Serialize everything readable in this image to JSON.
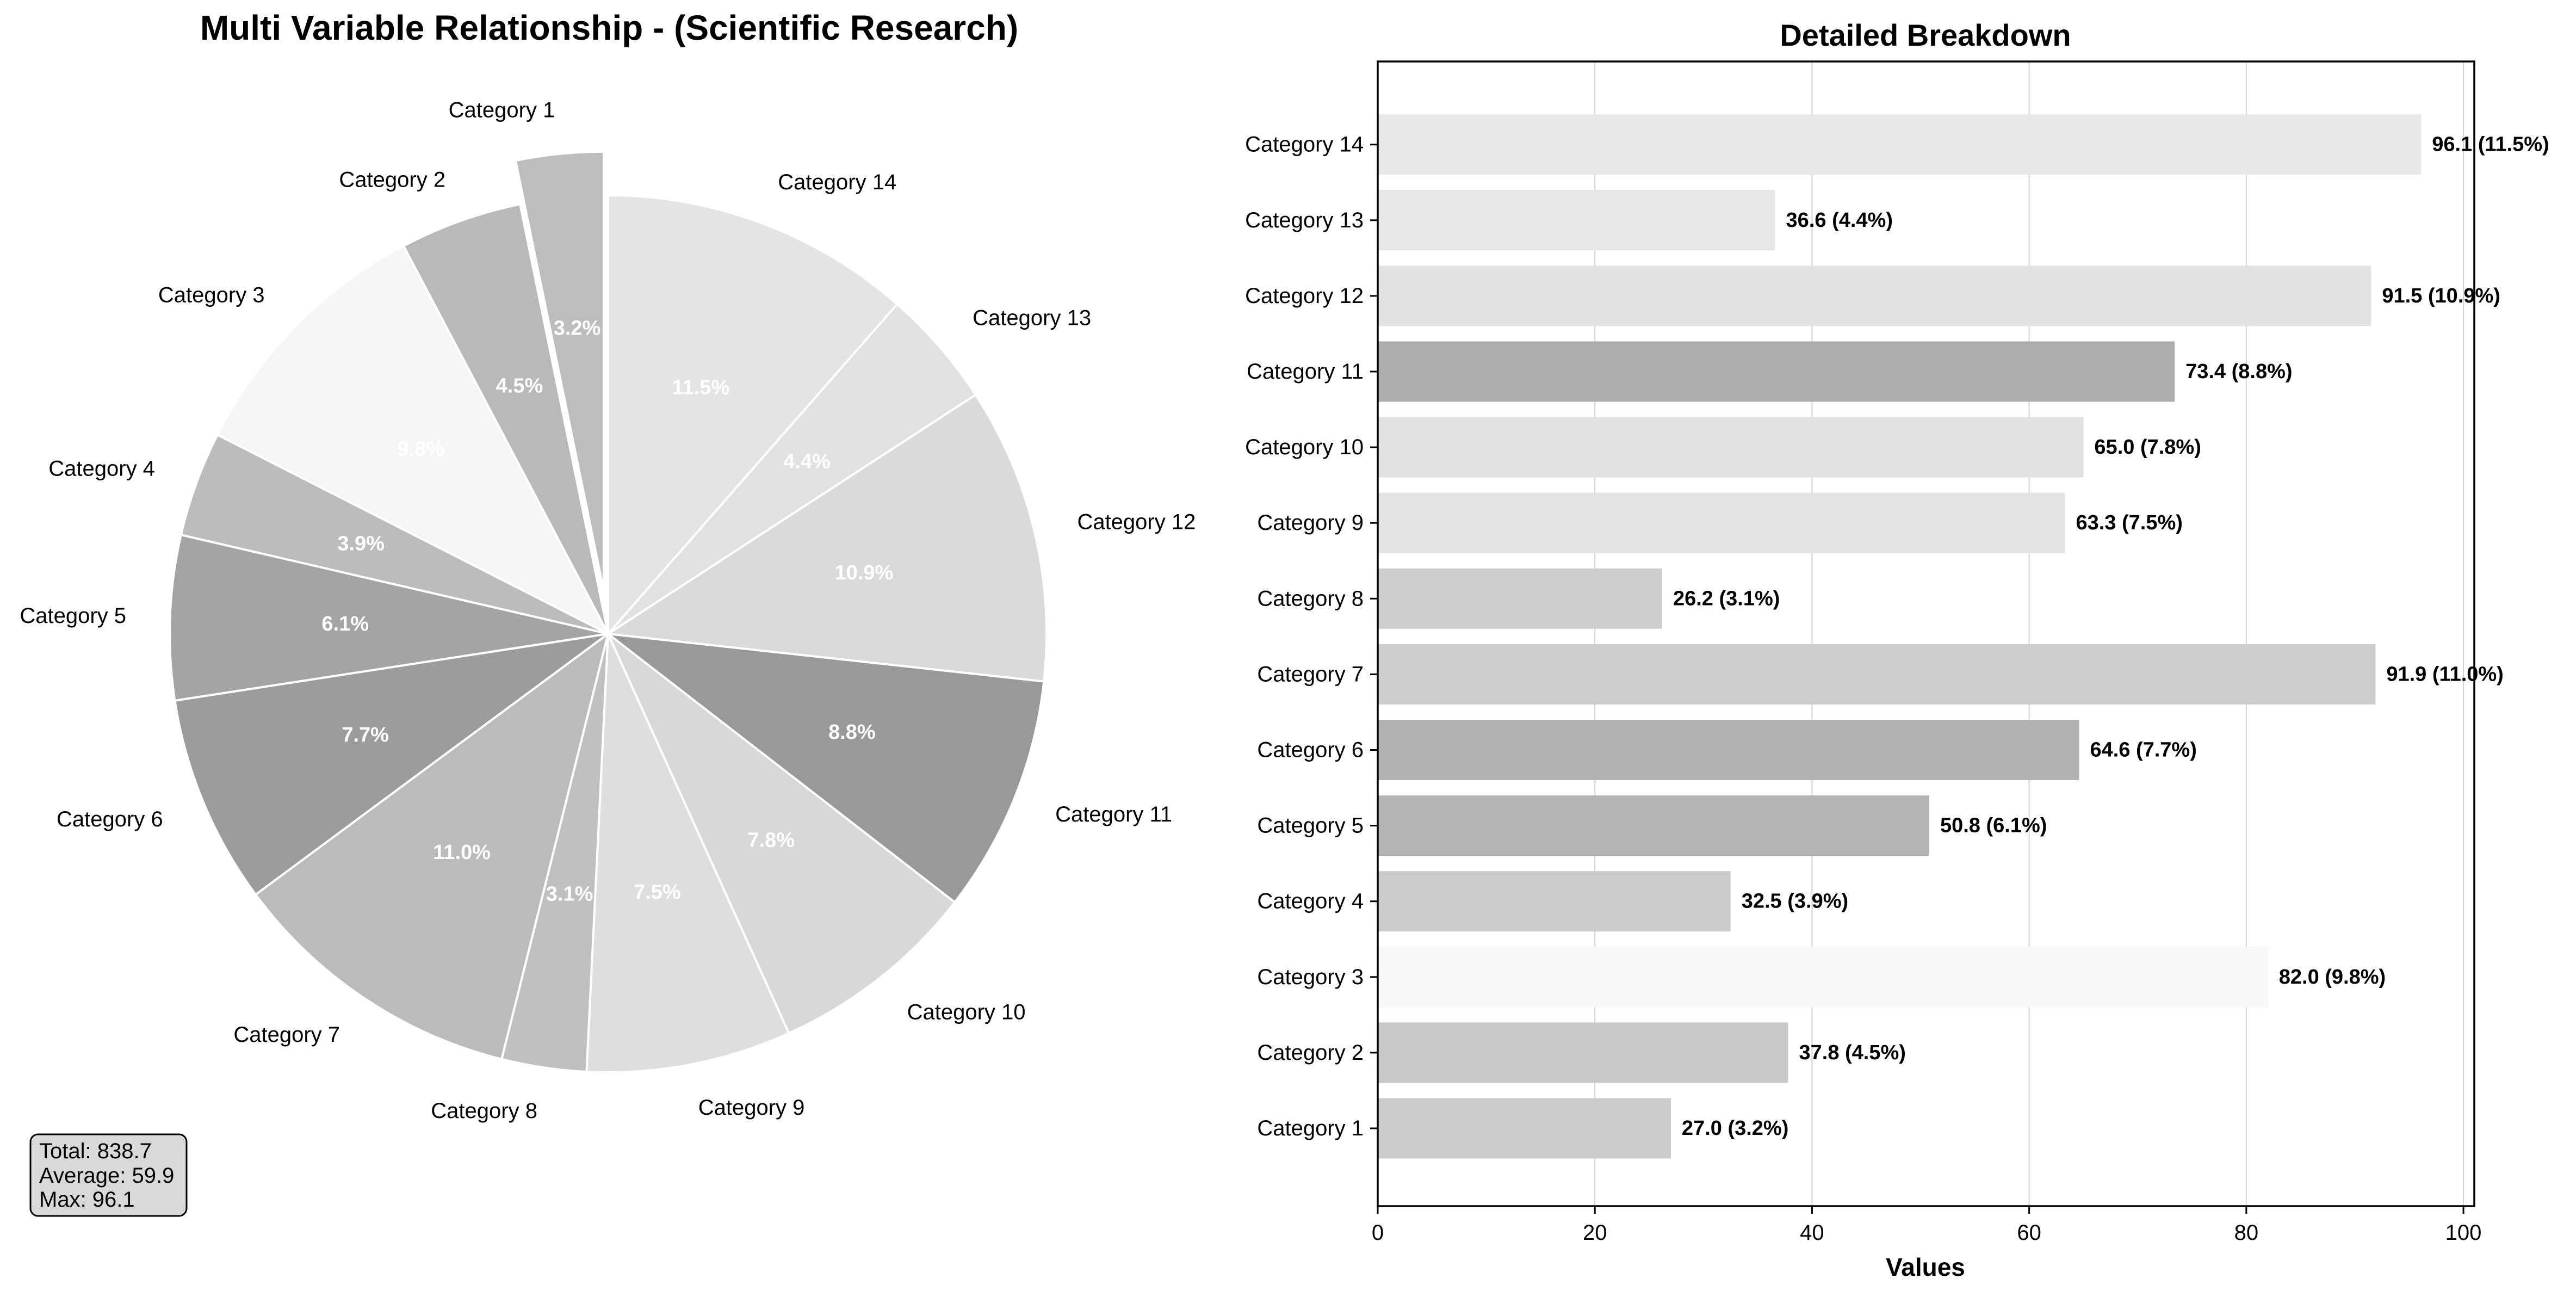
{
  "chart_data": [
    {
      "type": "pie",
      "title": "Multi Variable Relationship - (Scientific Research)",
      "categories": [
        "Category 1",
        "Category 2",
        "Category 3",
        "Category 4",
        "Category 5",
        "Category 6",
        "Category 7",
        "Category 8",
        "Category 9",
        "Category 10",
        "Category 11",
        "Category 12",
        "Category 13",
        "Category 14"
      ],
      "values": [
        27.0,
        37.8,
        82.0,
        32.5,
        50.8,
        64.6,
        91.9,
        26.2,
        63.3,
        65.0,
        73.4,
        91.5,
        36.6,
        96.1
      ],
      "percent_labels": [
        "3.2%",
        "4.5%",
        "9.8%",
        "3.9%",
        "6.1%",
        "7.7%",
        "11.0%",
        "3.1%",
        "7.5%",
        "7.8%",
        "8.8%",
        "10.9%",
        "4.4%",
        "11.5%"
      ],
      "colors": [
        "#bdbdbd",
        "#b9b9b9",
        "#f5f5f5",
        "#bcbcbc",
        "#a4a4a4",
        "#9c9c9c",
        "#bbbbbb",
        "#c0c0c0",
        "#dedede",
        "#d8d8d8",
        "#999999",
        "#dadada",
        "#e1e1e1",
        "#e4e4e4"
      ],
      "exploded": "Category 1",
      "start_angle_deg": 90,
      "direction": "counterclockwise",
      "stats_box": [
        "Total: 838.7",
        "Average: 59.9",
        "Max: 96.1"
      ]
    },
    {
      "type": "bar",
      "orientation": "horizontal",
      "title": "Detailed Breakdown",
      "xlabel": "Values",
      "ylabel": "",
      "xlim": [
        0,
        101
      ],
      "xticks": [
        "0",
        "20",
        "40",
        "60",
        "80",
        "100"
      ],
      "grid": "vertical",
      "categories": [
        "Category 1",
        "Category 2",
        "Category 3",
        "Category 4",
        "Category 5",
        "Category 6",
        "Category 7",
        "Category 8",
        "Category 9",
        "Category 10",
        "Category 11",
        "Category 12",
        "Category 13",
        "Category 14"
      ],
      "values": [
        27.0,
        37.8,
        82.0,
        32.5,
        50.8,
        64.6,
        91.9,
        26.2,
        63.3,
        65.0,
        73.4,
        91.5,
        36.6,
        96.1
      ],
      "value_labels": [
        "27.0 (3.2%)",
        "37.8 (4.5%)",
        "82.0 (9.8%)",
        "32.5 (3.9%)",
        "50.8 (6.1%)",
        "64.6 (7.7%)",
        "91.9 (11.0%)",
        "26.2 (3.1%)",
        "63.3 (7.5%)",
        "65.0 (7.8%)",
        "73.4 (8.8%)",
        "91.5 (10.9%)",
        "36.6 (4.4%)",
        "96.1 (11.5%)"
      ],
      "colors": [
        "#cccccc",
        "#c8c8c8",
        "#f7f7f7",
        "#cbcbcb",
        "#b4b4b4",
        "#b2b2b2",
        "#cdcdcd",
        "#cdcdcd",
        "#e3e3e3",
        "#e2e2e2",
        "#adadad",
        "#e2e2e2",
        "#e7e7e7",
        "#e8e8e8"
      ]
    }
  ]
}
